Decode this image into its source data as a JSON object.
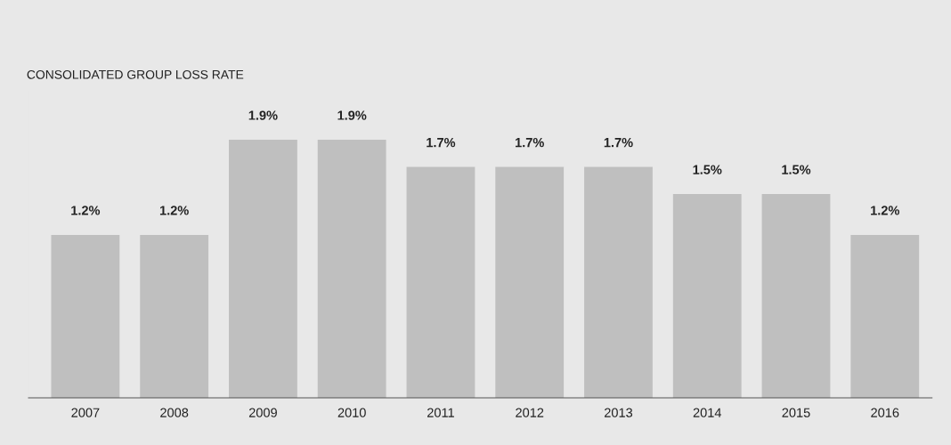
{
  "chart_data": {
    "type": "bar",
    "title": "CONSOLIDATED GROUP LOSS RATE",
    "categories": [
      "2007",
      "2008",
      "2009",
      "2010",
      "2011",
      "2012",
      "2013",
      "2014",
      "2015",
      "2016"
    ],
    "values": [
      1.2,
      1.2,
      1.9,
      1.9,
      1.7,
      1.7,
      1.7,
      1.5,
      1.5,
      1.2
    ],
    "value_labels": [
      "1.2%",
      "1.2%",
      "1.9%",
      "1.9%",
      "1.7%",
      "1.7%",
      "1.7%",
      "1.5%",
      "1.5%",
      "1.2%"
    ],
    "color": "#bfbfbf",
    "tick_labels": "x",
    "grid": false,
    "legend": false
  }
}
